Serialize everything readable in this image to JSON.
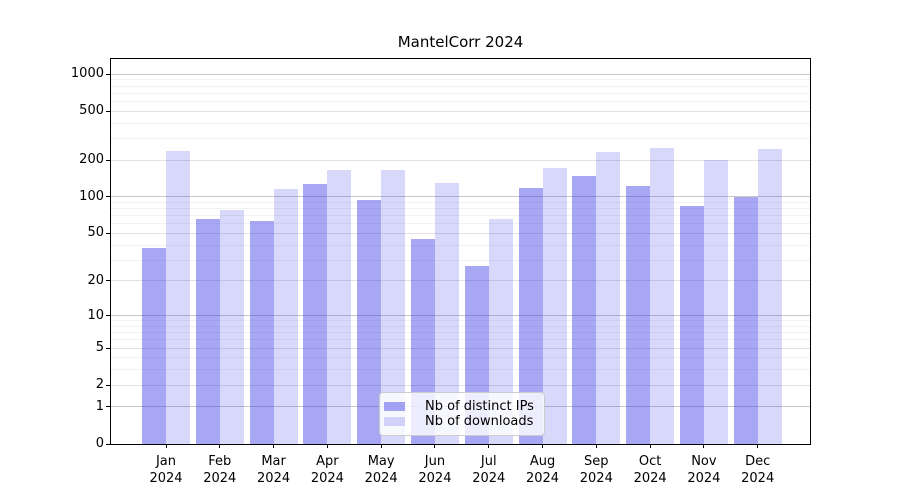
{
  "figure": {
    "background": "#ffffff"
  },
  "chart_data": {
    "type": "bar",
    "title": "MantelCorr 2024",
    "categories": [
      "Jan",
      "Feb",
      "Mar",
      "Apr",
      "May",
      "Jun",
      "Jul",
      "Aug",
      "Sep",
      "Oct",
      "Nov",
      "Dec"
    ],
    "year_label": "2024",
    "series": [
      {
        "name": "Nb of distinct IPs",
        "color": "rgba(60,60,230,0.45)",
        "values": [
          38,
          66,
          63,
          127,
          95,
          45,
          27,
          118,
          147,
          123,
          85,
          100
        ]
      },
      {
        "name": "Nb of downloads",
        "color": "rgba(60,60,230,0.2)",
        "values": [
          237,
          78,
          117,
          166,
          166,
          129,
          66,
          173,
          232,
          250,
          200,
          246
        ]
      }
    ],
    "xlabel": "",
    "ylabel": "",
    "yscale": "log10(1+x)",
    "yticks": [
      0,
      1,
      2,
      5,
      10,
      20,
      50,
      100,
      200,
      500,
      1000
    ],
    "ylim": [
      0,
      1326
    ],
    "grid": {
      "decade_color": "#c7c7c7",
      "labeled_color": "#e1e1e1",
      "minor_color": "#f2f2f2"
    },
    "legend": {
      "position": "lower-center",
      "background": "rgba(255,255,255,0.8)",
      "border_color": "#cccccc"
    }
  }
}
